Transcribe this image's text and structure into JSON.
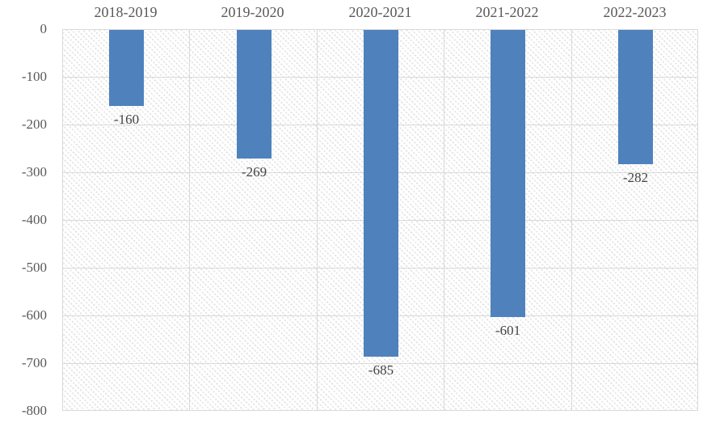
{
  "chart_data": {
    "type": "bar",
    "title": "",
    "categories": [
      "2018-2019",
      "2019-2020",
      "2020-2021",
      "2021-2022",
      "2022-2023"
    ],
    "values": [
      -160,
      -269,
      -685,
      -601,
      -282
    ],
    "data_labels": [
      "-160",
      "-269",
      "-685",
      "-601",
      "-282"
    ],
    "xlabel": "",
    "ylabel": "",
    "ylim": [
      -800,
      0
    ],
    "y_ticks": [
      0,
      -100,
      -200,
      -300,
      -400,
      -500,
      -600,
      -700,
      -800
    ],
    "y_tick_labels": [
      "0",
      "-100",
      "-200",
      "-300",
      "-400",
      "-500",
      "-600",
      "-700",
      "-800"
    ],
    "grid": true,
    "legend_position": "none",
    "category_axis_position": "top",
    "data_label_position": "below-bar-end",
    "plot_area_fill": "light-diagonal-hatch",
    "colors": {
      "bar": "#4F81BD",
      "gridline": "#D9D9D9",
      "plot_border": "#D9D9D9",
      "axis_text": "#595959",
      "data_label_text": "#444444",
      "hatch": "#E3E3E3",
      "background": "#FFFFFF"
    }
  }
}
